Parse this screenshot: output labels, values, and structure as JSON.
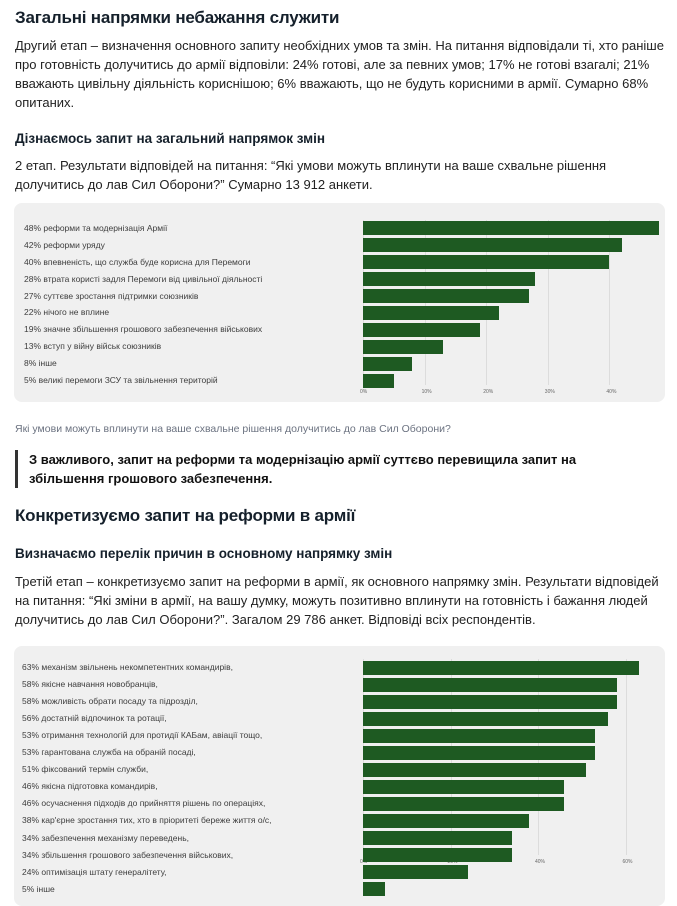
{
  "section1": {
    "title": "Загальні напрямки небажання служити",
    "paragraph": "Другий етап – визначення основного запиту необхідних умов та змін. На питання відповідали ті, хто раніше про готовність долучитись до армії відповіли: 24% готові, але за певних умов; 17% не готові взагалі; 21% вважають цивільну діяльність кориснішою; 6% вважають, що не будуть корисними в армії. Сумарно 68% опитаних."
  },
  "section2": {
    "title": "Дізнаємось запит на загальний напрямок змін",
    "paragraph": "2 етап. Результати відповідей на питання: “Які умови можуть вплинути на ваше схвальне рішення долучитись до лав Сил Оборони?” Сумарно 13 912 анкети.",
    "caption": "Які умови можуть вплинути на ваше схвальне рішення долучитись до лав Сил Оборони?",
    "quote": "З важливого, запит на реформи та модернізацію армії суттєво перевищила запит на збільшення грошового забезпечення."
  },
  "section3": {
    "title": "Конкретизуємо запит на реформи в армії",
    "subtitle": "Визначаємо перелік причин в основному напрямку змін",
    "paragraph": "Третій етап – конкретизуємо запит на реформи в армії, як основного напрямку змін. Результати відповідей на питання: “Які зміни в армії, на вашу думку, можуть позитивно вплинути на готовність і бажання людей долучитись до лав Сил Оборони?”. Загалом 29 786 анкет. Відповіді всіх респондентів."
  },
  "chart_data": [
    {
      "type": "bar",
      "orientation": "horizontal",
      "categories": [
        "48% реформи та модернізація Армії",
        "42% реформи уряду",
        "40% впевненість, що служба буде  корисна для Перемоги",
        "28% втрата користі задля Перемоги від цивільної діяльності",
        "27% суттєве зростання підтримки союзників",
        "22% нічого не вплине",
        "19% значне збільшення грошового забезпечення військових",
        "13% вступ у війну військ союзників",
        "8% інше",
        "5% великі перемоги ЗСУ та звільнення територій"
      ],
      "values": [
        48,
        42,
        40,
        28,
        27,
        22,
        19,
        13,
        8,
        5
      ],
      "xticks": [
        "0%",
        "10%",
        "20%",
        "30%",
        "40%"
      ],
      "xlim": [
        0,
        50
      ],
      "color": "#1e5a22"
    },
    {
      "type": "bar",
      "orientation": "horizontal",
      "categories": [
        "63% механізм звільнень некомпетентних командирів,",
        "58% якісне навчання новобранців,",
        "58% можливість обрати посаду та підрозділ,",
        "56% достатній відпочинок та ротації,",
        "53% отримання технологій для протидії КАБам, авіації тощо,",
        "53% гарантована служба на обраній посаді,",
        "51% фіксований термін служби,",
        "46% якісна підготовка командирів,",
        "46% осучаснення підходів до прийняття рішень по операціях,",
        "38% кар'єрне зростання тих, хто в пріоритеті береже життя о/с,",
        "34% забезпечення механізму переведень,",
        "34% збільшення грошового забезпечення військових,",
        "24% оптимізація штату генералітету,",
        "5% інше"
      ],
      "values": [
        63,
        58,
        58,
        56,
        53,
        53,
        51,
        46,
        46,
        38,
        34,
        34,
        24,
        5
      ],
      "xticks": [
        "0%",
        "20%",
        "40%",
        "60%"
      ],
      "xlim": [
        0,
        64
      ],
      "color": "#1e5a22"
    }
  ]
}
